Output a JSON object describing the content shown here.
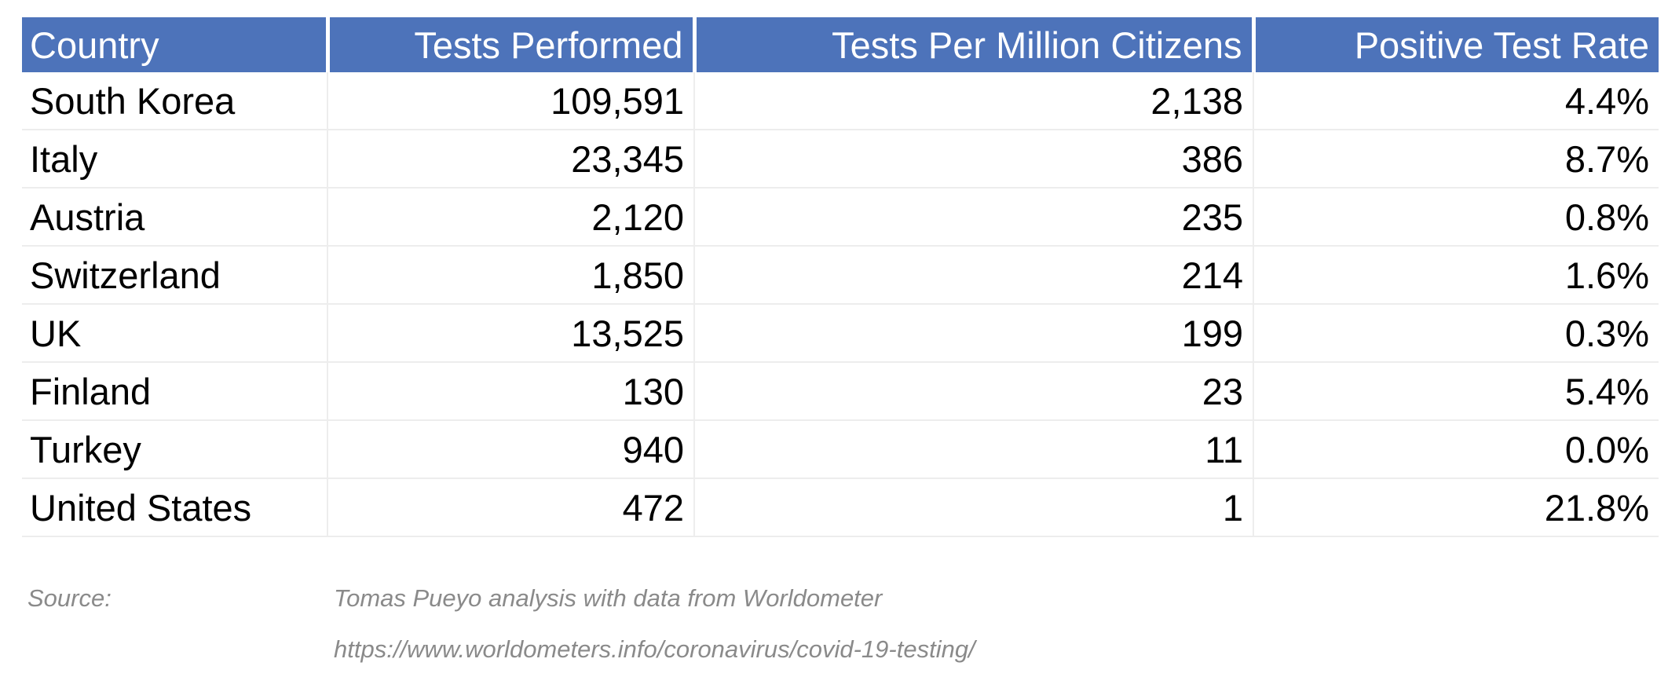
{
  "chart_data": {
    "type": "table",
    "title": "",
    "columns": [
      "Country",
      "Tests Performed",
      "Tests Per Million Citizens",
      "Positive Test Rate"
    ],
    "rows": [
      [
        "South Korea",
        "109,591",
        "2,138",
        "4.4%"
      ],
      [
        "Italy",
        "23,345",
        "386",
        "8.7%"
      ],
      [
        "Austria",
        "2,120",
        "235",
        "0.8%"
      ],
      [
        "Switzerland",
        "1,850",
        "214",
        "1.6%"
      ],
      [
        "UK",
        "13,525",
        "199",
        "0.3%"
      ],
      [
        "Finland",
        "130",
        "23",
        "5.4%"
      ],
      [
        "Turkey",
        "940",
        "11",
        "0.0%"
      ],
      [
        "United States",
        "472",
        "1",
        "21.8%"
      ]
    ],
    "numeric_rows": [
      {
        "country": "South Korea",
        "tests_performed": 109591,
        "tests_per_million": 2138,
        "positive_rate_pct": 4.4
      },
      {
        "country": "Italy",
        "tests_performed": 23345,
        "tests_per_million": 386,
        "positive_rate_pct": 8.7
      },
      {
        "country": "Austria",
        "tests_performed": 2120,
        "tests_per_million": 235,
        "positive_rate_pct": 0.8
      },
      {
        "country": "Switzerland",
        "tests_performed": 1850,
        "tests_per_million": 214,
        "positive_rate_pct": 1.6
      },
      {
        "country": "UK",
        "tests_performed": 13525,
        "tests_per_million": 199,
        "positive_rate_pct": 0.3
      },
      {
        "country": "Finland",
        "tests_performed": 130,
        "tests_per_million": 23,
        "positive_rate_pct": 5.4
      },
      {
        "country": "Turkey",
        "tests_performed": 940,
        "tests_per_million": 11,
        "positive_rate_pct": 0.0
      },
      {
        "country": "United States",
        "tests_performed": 472,
        "tests_per_million": 1,
        "positive_rate_pct": 21.8
      }
    ]
  },
  "source": {
    "label": "Source:",
    "attribution": "Tomas Pueyo analysis with data from Worldometer",
    "url": "https://www.worldometers.info/coronavirus/covid-19-testing/"
  },
  "colors": {
    "header_bg": "#4D73BA",
    "header_text": "#FFFFFF",
    "grid_line": "#EDEDED",
    "body_text": "#000000",
    "source_text": "#8A8A8A"
  }
}
